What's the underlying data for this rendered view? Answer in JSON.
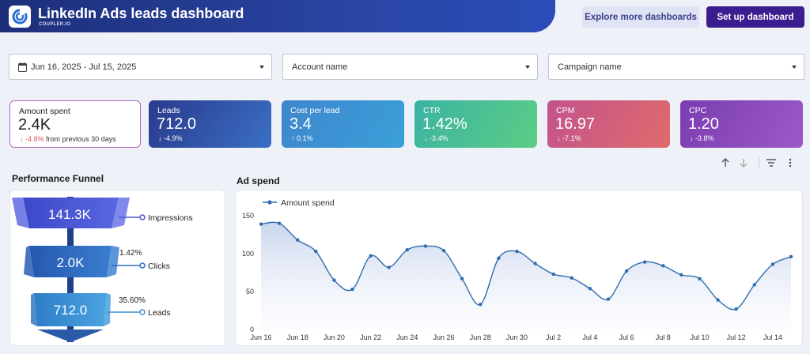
{
  "header": {
    "title": "LinkedIn Ads leads dashboard",
    "brand": "COUPLER.IO",
    "explore_label": "Explore more dashboards",
    "setup_label": "Set up dashboard"
  },
  "filters": {
    "date_range": "Jun 16, 2025 - Jul 15, 2025",
    "account_placeholder": "Account name",
    "campaign_placeholder": "Campaign name"
  },
  "kpis": [
    {
      "label": "Amount spent",
      "value": "2.4K",
      "change": "-4.8%",
      "suffix": "from previous 30 days",
      "change_arrow": "↓"
    },
    {
      "label": "Leads",
      "value": "712.0",
      "change": "-4.9%",
      "change_arrow": "↓"
    },
    {
      "label": "Cost per lead",
      "value": "3.4",
      "change": "0.1%",
      "change_arrow": "↑"
    },
    {
      "label": "CTR",
      "value": "1.42%",
      "change": "-3.4%",
      "change_arrow": "↓"
    },
    {
      "label": "CPM",
      "value": "16.97",
      "change": "-7.1%",
      "change_arrow": "↓"
    },
    {
      "label": "CPC",
      "value": "1.20",
      "change": "-3.8%",
      "change_arrow": "↓"
    }
  ],
  "colors": {
    "kpi_leads": [
      "#2a3a8c",
      "#3a6fc4"
    ],
    "kpi_cpl": [
      "#3f86cc",
      "#3a9fd9"
    ],
    "kpi_ctr": [
      "#3bb3a4",
      "#5ccd84"
    ],
    "kpi_cpm": [
      "#c2538d",
      "#e06b6b"
    ],
    "kpi_cpc": [
      "#7a3cb0",
      "#9c5ac8"
    ],
    "line": "#2f6db0",
    "funnel_top": "#4a57d6",
    "funnel_mid": "#2f6dc2",
    "funnel_bottom": "#3a92d6"
  },
  "funnel": {
    "title": "Performance Funnel",
    "stages": [
      {
        "value": "141.3K",
        "label": "Impressions",
        "rate": ""
      },
      {
        "value": "2.0K",
        "label": "Clicks",
        "rate": "1.42%"
      },
      {
        "value": "712.0",
        "label": "Leads",
        "rate": "35.60%"
      }
    ]
  },
  "toolbar": {
    "icons": [
      "arrow-up-icon",
      "arrow-down-icon",
      "filter-icon",
      "more-vert-icon"
    ]
  },
  "chart_data": {
    "type": "area",
    "title": "Ad spend",
    "series": [
      {
        "name": "Amount spend",
        "values": [
          139,
          140,
          118,
          103,
          65,
          53,
          97,
          82,
          105,
          110,
          104,
          67,
          33,
          94,
          103,
          87,
          73,
          68,
          54,
          40,
          77,
          89,
          84,
          72,
          67,
          39,
          27,
          59,
          86,
          96
        ]
      }
    ],
    "x_tick_labels": [
      "Jun 16",
      "Jun 18",
      "Jun 20",
      "Jun 22",
      "Jun 24",
      "Jun 26",
      "Jun 28",
      "Jun 30",
      "Jul 2",
      "Jul 4",
      "Jul 6",
      "Jul 8",
      "Jul 10",
      "Jul 12",
      "Jul 14"
    ],
    "y_ticks": [
      0,
      50,
      100,
      150
    ],
    "ylim": [
      0,
      150
    ],
    "legend_position": "top-left",
    "grid": false
  }
}
